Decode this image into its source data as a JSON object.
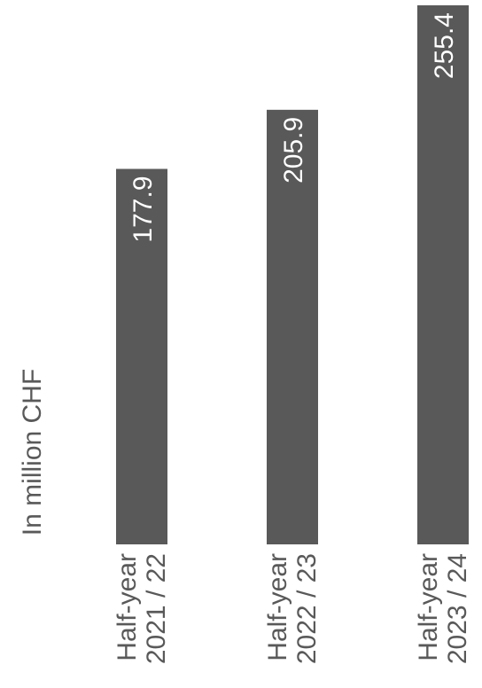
{
  "chart_data": {
    "type": "bar",
    "orientation": "vertical-bars-rotated-labels",
    "ylabel": "In million CHF",
    "categories": [
      [
        "Half-year",
        "2021 / 22"
      ],
      [
        "Half-year",
        "2022 / 23"
      ],
      [
        "Half-year",
        "2023 / 24"
      ]
    ],
    "values": [
      177.9,
      205.9,
      255.4
    ],
    "value_labels": [
      "177.9",
      "205.9",
      "255.4"
    ],
    "ylim": [
      0,
      255.4
    ],
    "grid": false,
    "legend": "none",
    "colors": {
      "bar": "#595959",
      "bar_label": "#ffffff",
      "text": "#595959",
      "background": "#ffffff"
    }
  }
}
